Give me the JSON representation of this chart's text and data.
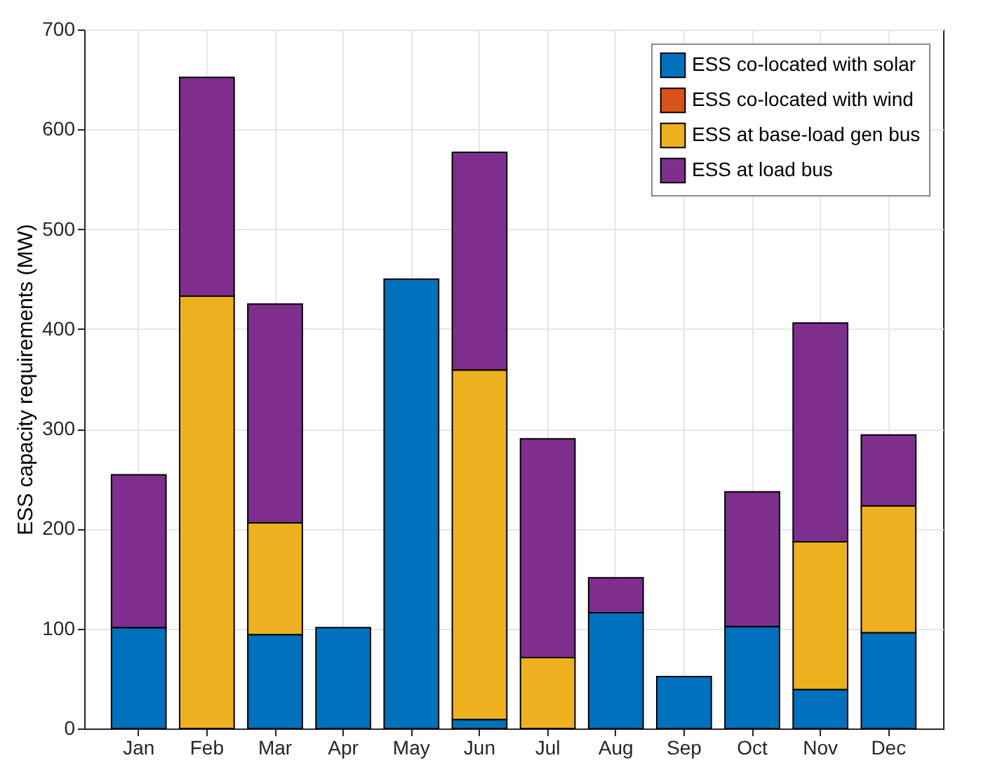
{
  "chart_data": {
    "type": "bar",
    "stacked": true,
    "ylabel": "ESS capacity requirements (MW)",
    "categories": [
      "Jan",
      "Feb",
      "Mar",
      "Apr",
      "May",
      "Jun",
      "Jul",
      "Aug",
      "Sep",
      "Oct",
      "Nov",
      "Dec"
    ],
    "series": [
      {
        "name": "ESS co-located with solar",
        "color": "#0072bd",
        "values": [
          101,
          null,
          94,
          101,
          450,
          9,
          null,
          116,
          52,
          102,
          39,
          96
        ]
      },
      {
        "name": "ESS co-located with wind",
        "color": "#d95319",
        "values": [
          null,
          null,
          null,
          null,
          null,
          null,
          null,
          null,
          null,
          null,
          null,
          null
        ]
      },
      {
        "name": "ESS at base-load gen bus",
        "color": "#edb120",
        "values": [
          null,
          433,
          112,
          null,
          null,
          350,
          71,
          null,
          null,
          null,
          148,
          127
        ]
      },
      {
        "name": "ESS at load bus",
        "color": "#7e2f8e",
        "values": [
          153,
          219,
          219,
          null,
          null,
          218,
          219,
          35,
          null,
          135,
          219,
          71
        ]
      }
    ],
    "ylim": [
      0,
      700
    ],
    "yticks": [
      0,
      100,
      200,
      300,
      400,
      500,
      600,
      700
    ],
    "grid": true,
    "legend": "top right"
  }
}
